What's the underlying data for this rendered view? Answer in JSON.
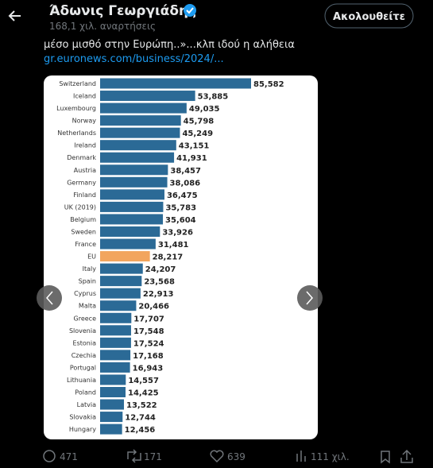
{
  "header": {
    "name": "Άδωνις Γεωργιάδης",
    "posts": "168,1 χιλ. αναρτήσεις",
    "follow_button": "Ακολουθείτε"
  },
  "tweet": {
    "text": "μέσο μισθό στην Ευρώπη..»...κλπ ιδού η αλήθεια",
    "link": "gr.euronews.com/business/2024/..."
  },
  "chart_data": {
    "type": "bar",
    "orientation": "horizontal",
    "categories": [
      "Switzerland",
      "Iceland",
      "Luxembourg",
      "Norway",
      "Netherlands",
      "Ireland",
      "Denmark",
      "Austria",
      "Germany",
      "Finland",
      "UK (2019)",
      "Belgium",
      "Sweden",
      "France",
      "EU",
      "Italy",
      "Spain",
      "Cyprus",
      "Malta",
      "Greece",
      "Slovenia",
      "Estonia",
      "Czechia",
      "Portugal",
      "Lithuania",
      "Poland",
      "Latvia",
      "Slovakia",
      "Hungary"
    ],
    "values": [
      85582,
      53885,
      49035,
      45798,
      45249,
      43151,
      41931,
      38457,
      38086,
      36475,
      35783,
      35604,
      33926,
      31481,
      28217,
      24207,
      23568,
      22913,
      20466,
      17707,
      17548,
      17524,
      17168,
      16943,
      14557,
      14425,
      13522,
      12744,
      12456
    ],
    "value_labels": [
      "85,582",
      "53,885",
      "49,035",
      "45,798",
      "45,249",
      "43,151",
      "41,931",
      "38,457",
      "38,086",
      "36,475",
      "35,783",
      "35,604",
      "33,926",
      "31,481",
      "28,217",
      "24,207",
      "23,568",
      "22,913",
      "20,466",
      "17,707",
      "17,548",
      "17,524",
      "17,168",
      "16,943",
      "14,557",
      "14,425",
      "13,522",
      "12,744",
      "12,456"
    ],
    "colors": [
      "#2b6a96",
      "#2b6a96",
      "#2b6a96",
      "#2b6a96",
      "#2b6a96",
      "#2b6a96",
      "#2b6a96",
      "#2b6a96",
      "#2b6a96",
      "#2b6a96",
      "#2b6a96",
      "#2b6a96",
      "#2b6a96",
      "#2b6a96",
      "#f2a55e",
      "#2b6a96",
      "#2b6a96",
      "#2b6a96",
      "#2b6a96",
      "#2b6a96",
      "#2b6a96",
      "#2b6a96",
      "#2b6a96",
      "#2b6a96",
      "#2b6a96",
      "#2b6a96",
      "#2b6a96",
      "#2b6a96",
      "#2b6a96"
    ]
  },
  "actions": {
    "replies": "471",
    "reposts": "171",
    "likes": "639",
    "views": "111 χιλ."
  }
}
